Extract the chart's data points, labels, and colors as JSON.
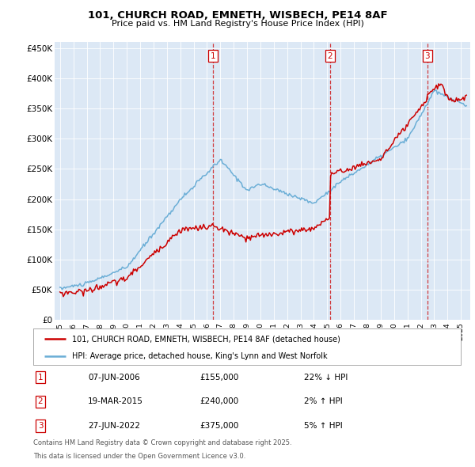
{
  "title_line1": "101, CHURCH ROAD, EMNETH, WISBECH, PE14 8AF",
  "title_line2": "Price paid vs. HM Land Registry's House Price Index (HPI)",
  "background_color": "#ffffff",
  "plot_bg_color": "#dce8f5",
  "ylim": [
    0,
    460000
  ],
  "yticks": [
    0,
    50000,
    100000,
    150000,
    200000,
    250000,
    300000,
    350000,
    400000,
    450000
  ],
  "ytick_labels": [
    "£0",
    "£50K",
    "£100K",
    "£150K",
    "£200K",
    "£250K",
    "£300K",
    "£350K",
    "£400K",
    "£450K"
  ],
  "hpi_color": "#6baed6",
  "price_color": "#cc0000",
  "sale1_x": 2006.44,
  "sale1_price": 155000,
  "sale2_x": 2015.21,
  "sale2_price": 240000,
  "sale3_x": 2022.49,
  "sale3_price": 375000,
  "legend_line1": "101, CHURCH ROAD, EMNETH, WISBECH, PE14 8AF (detached house)",
  "legend_line2": "HPI: Average price, detached house, King's Lynn and West Norfolk",
  "table_row1_num": "1",
  "table_row1_date": "07-JUN-2006",
  "table_row1_price": "£155,000",
  "table_row1_hpi": "22% ↓ HPI",
  "table_row2_num": "2",
  "table_row2_date": "19-MAR-2015",
  "table_row2_price": "£240,000",
  "table_row2_hpi": "2% ↑ HPI",
  "table_row3_num": "3",
  "table_row3_date": "27-JUN-2022",
  "table_row3_price": "£375,000",
  "table_row3_hpi": "5% ↑ HPI",
  "footnote_line1": "Contains HM Land Registry data © Crown copyright and database right 2025.",
  "footnote_line2": "This data is licensed under the Open Government Licence v3.0."
}
